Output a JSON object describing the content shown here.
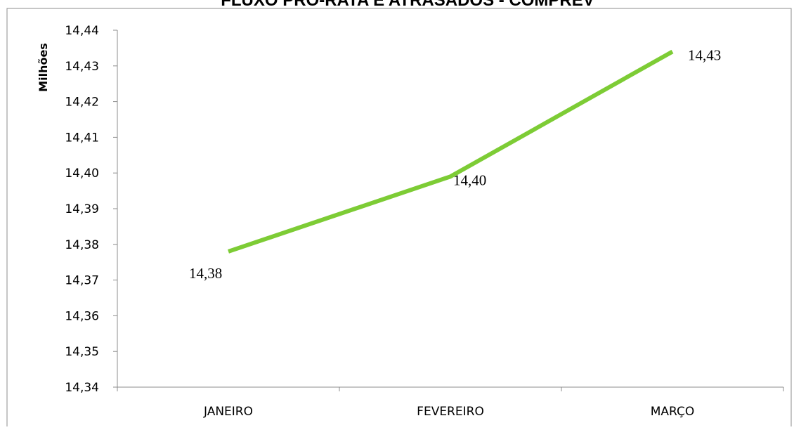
{
  "chart_data": {
    "type": "line",
    "title": "FLUXO PRO-RATA E ATRASADOS - COMPREV",
    "ylabel": "Milhões",
    "xlabel": "",
    "categories": [
      "JANEIRO",
      "FEVEREIRO",
      "MARÇO"
    ],
    "series": [
      {
        "values": [
          14.378,
          14.399,
          14.434
        ],
        "labels": [
          "14,38",
          "14,40",
          "14,43"
        ]
      }
    ],
    "ylim": [
      14.34,
      14.44
    ],
    "yticks": [
      14.34,
      14.35,
      14.36,
      14.37,
      14.38,
      14.39,
      14.4,
      14.41,
      14.42,
      14.43,
      14.44
    ],
    "ytick_labels": [
      "14,34",
      "14,35",
      "14,36",
      "14,37",
      "14,38",
      "14,39",
      "14,40",
      "14,41",
      "14,42",
      "14,43",
      "14,44"
    ],
    "grid": false,
    "legend": "none",
    "line_color": "#7dcc35"
  }
}
